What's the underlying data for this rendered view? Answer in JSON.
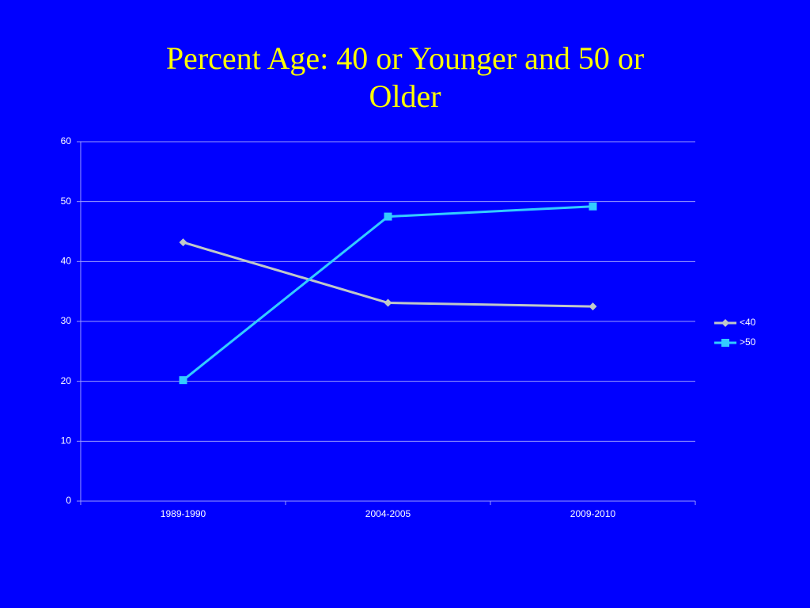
{
  "chart_data": {
    "type": "line",
    "title": "Percent Age: 40 or Younger and 50 or Older",
    "categories": [
      "1989-1990",
      "2004-2005",
      "2009-2010"
    ],
    "series": [
      {
        "name": "<40",
        "color": "#c0c8c8",
        "marker": "diamond",
        "values": [
          43.2,
          33.1,
          32.5
        ]
      },
      {
        "name": ">50",
        "color": "#33ccff",
        "marker": "square",
        "values": [
          20.2,
          47.5,
          49.2
        ]
      }
    ],
    "ylim": [
      0,
      60
    ],
    "yticks": [
      0,
      10,
      20,
      30,
      40,
      50,
      60
    ],
    "grid": true,
    "legend": "right"
  }
}
